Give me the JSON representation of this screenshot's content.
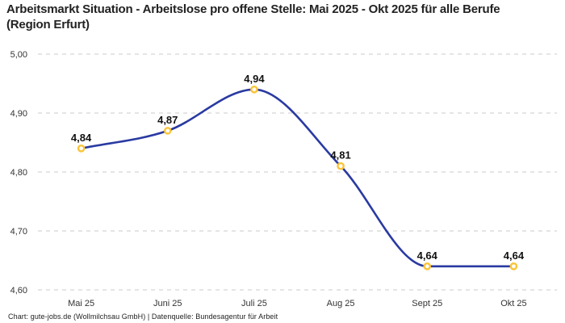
{
  "title": "Arbeitsmarkt Situation - Arbeitslose pro offene Stelle: Mai 2025 - Okt 2025 für alle Berufe (Region Erfurt)",
  "footer": "Chart: gute-jobs.de (Wollmilchsau GmbH) | Datenquelle: Bundesagentur für Arbeit",
  "chart_data": {
    "type": "line",
    "title": "Arbeitsmarkt Situation - Arbeitslose pro offene Stelle: Mai 2025 - Okt 2025 für alle Berufe (Region Erfurt)",
    "categories": [
      "Mai 25",
      "Juni 25",
      "Juli 25",
      "Aug 25",
      "Sept 25",
      "Okt 25"
    ],
    "values": [
      4.84,
      4.87,
      4.94,
      4.81,
      4.64,
      4.64
    ],
    "value_labels": [
      "4,84",
      "4,87",
      "4,94",
      "4,81",
      "4,64",
      "4,64"
    ],
    "xlabel": "",
    "ylabel": "",
    "ylim": [
      4.6,
      5.0
    ],
    "y_ticks": [
      4.6,
      4.7,
      4.8,
      4.9,
      5.0
    ],
    "y_tick_labels": [
      "4,60",
      "4,70",
      "4,80",
      "4,90",
      "5,00"
    ],
    "grid": "horizontal-dashed",
    "legend": "none",
    "curve": "monotone",
    "colors": {
      "line": "#2a3aa2",
      "marker_stroke": "#fbc437",
      "marker_fill": "#ffffff",
      "grid": "#cbcbcb",
      "axis_text": "#333333",
      "title_text": "#222222",
      "label_text": "#111111"
    }
  }
}
